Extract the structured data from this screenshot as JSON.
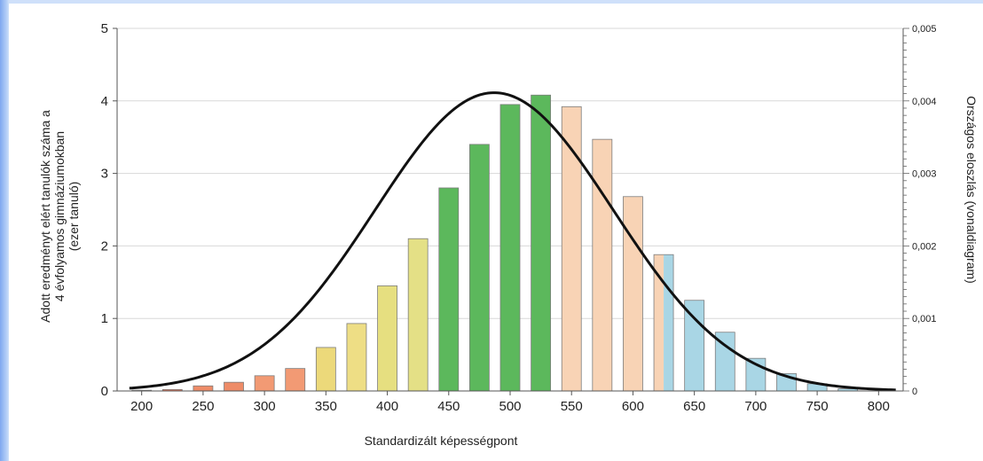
{
  "chart_data": {
    "type": "bar",
    "xlabel": "Standardizált képességpont",
    "ylabel_left": [
      "Adott eredményt elért tanulók száma a",
      "4 évfolyamos gimnáziumokban",
      "(ezer tanuló)"
    ],
    "ylabel_right": "Országos eloszlás (vonaldiagram)",
    "xlim": [
      180,
      820
    ],
    "ylim": [
      0,
      5
    ],
    "ylim_right": [
      0,
      0.005
    ],
    "xticks": [
      "200",
      "250",
      "300",
      "350",
      "400",
      "450",
      "500",
      "550",
      "600",
      "650",
      "700",
      "750",
      "800"
    ],
    "yticks": [
      "0",
      "1",
      "2",
      "3",
      "4",
      "5"
    ],
    "yticks_right": [
      "0",
      "0,001",
      "0,002",
      "0,003",
      "0,004",
      "0,005"
    ],
    "bars": [
      {
        "x": 200,
        "value": 0.01,
        "color": "#e8765a"
      },
      {
        "x": 225,
        "value": 0.02,
        "color": "#e8765a"
      },
      {
        "x": 250,
        "value": 0.07,
        "color": "#ee8c68"
      },
      {
        "x": 275,
        "value": 0.12,
        "color": "#ee8c68"
      },
      {
        "x": 300,
        "value": 0.21,
        "color": "#f29a74"
      },
      {
        "x": 325,
        "value": 0.31,
        "color": "#f29a74"
      },
      {
        "x": 350,
        "value": 0.6,
        "color": "#ecd97a"
      },
      {
        "x": 375,
        "value": 0.93,
        "color": "#eede85"
      },
      {
        "x": 400,
        "value": 1.45,
        "color": "#e6df80"
      },
      {
        "x": 425,
        "value": 2.1,
        "color": "#e4e086"
      },
      {
        "x": 450,
        "value": 2.8,
        "color": "#5cb85c"
      },
      {
        "x": 475,
        "value": 3.4,
        "color": "#5cb85c"
      },
      {
        "x": 500,
        "value": 3.95,
        "color": "#5cb85c"
      },
      {
        "x": 525,
        "value": 4.08,
        "color": "#5cb85c"
      },
      {
        "x": 550,
        "value": 3.92,
        "color": "#f8d3b5"
      },
      {
        "x": 575,
        "value": 3.47,
        "color": "#f8d3b5"
      },
      {
        "x": 600,
        "value": 2.68,
        "color": "#f8d3b5"
      },
      {
        "x": 625,
        "value": 1.88,
        "color": "#f8d3b5",
        "color2": "#a9d6e5"
      },
      {
        "x": 650,
        "value": 1.25,
        "color": "#a9d6e5"
      },
      {
        "x": 675,
        "value": 0.81,
        "color": "#a9d6e5"
      },
      {
        "x": 700,
        "value": 0.45,
        "color": "#a9d6e5"
      },
      {
        "x": 725,
        "value": 0.24,
        "color": "#a9d6e5"
      },
      {
        "x": 750,
        "value": 0.1,
        "color": "#a9d6e5"
      },
      {
        "x": 775,
        "value": 0.03,
        "color": "#a9d6e5"
      }
    ],
    "bar_width": 22,
    "line": {
      "distribution": "normal",
      "mean": 487,
      "sd": 97,
      "x_range": [
        190,
        815
      ],
      "color": "#111111"
    }
  }
}
